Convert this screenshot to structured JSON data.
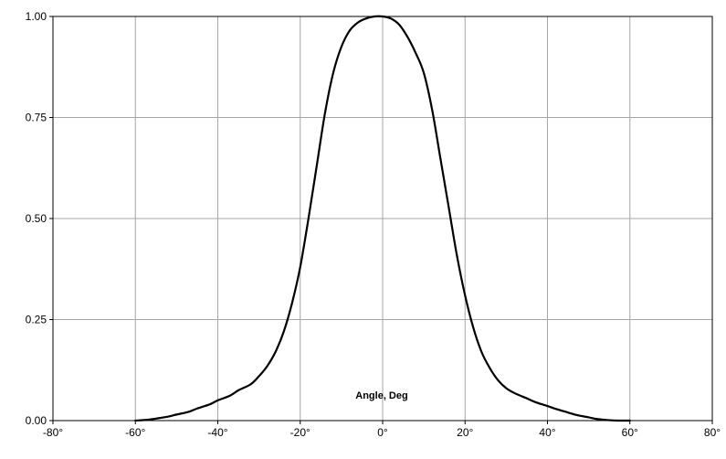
{
  "chart_data": {
    "type": "line",
    "title": "",
    "xlabel": "Angle, Deg",
    "ylabel": "",
    "xlim": [
      -80,
      80
    ],
    "ylim": [
      0,
      1
    ],
    "grid": true,
    "legend": "none",
    "x_ticks": [
      "-80°",
      "-60°",
      "-40°",
      "-20°",
      "0°",
      "20°",
      "40°",
      "60°",
      "80°"
    ],
    "x_tick_values": [
      -80,
      -60,
      -40,
      -20,
      0,
      20,
      40,
      60,
      80
    ],
    "y_ticks": [
      "0.00",
      "0.25",
      "0.50",
      "0.75",
      "1.00"
    ],
    "y_tick_values": [
      0,
      0.25,
      0.5,
      0.75,
      1
    ],
    "series": [
      {
        "color": "#000000",
        "x": [
          -60,
          -57,
          -55,
          -52,
          -50,
          -47,
          -45,
          -42,
          -40,
          -37,
          -35,
          -32,
          -30,
          -28,
          -26,
          -24,
          -22,
          -20,
          -18,
          -16,
          -14,
          -12,
          -10,
          -8,
          -6,
          -4,
          -2,
          0,
          2,
          4,
          6,
          8,
          10,
          12,
          14,
          16,
          18,
          20,
          22,
          24,
          26,
          28,
          30,
          32,
          35,
          37,
          40,
          42,
          45,
          47,
          50,
          52,
          55,
          57,
          60
        ],
        "y": [
          0.0,
          0.002,
          0.005,
          0.01,
          0.015,
          0.022,
          0.03,
          0.04,
          0.05,
          0.062,
          0.075,
          0.09,
          0.11,
          0.135,
          0.17,
          0.22,
          0.29,
          0.38,
          0.5,
          0.63,
          0.76,
          0.86,
          0.925,
          0.965,
          0.985,
          0.995,
          1.0,
          1.0,
          0.995,
          0.98,
          0.95,
          0.91,
          0.86,
          0.77,
          0.65,
          0.53,
          0.41,
          0.31,
          0.23,
          0.17,
          0.13,
          0.1,
          0.08,
          0.068,
          0.055,
          0.046,
          0.036,
          0.029,
          0.02,
          0.014,
          0.008,
          0.004,
          0.001,
          0.0,
          0.0
        ]
      }
    ]
  }
}
